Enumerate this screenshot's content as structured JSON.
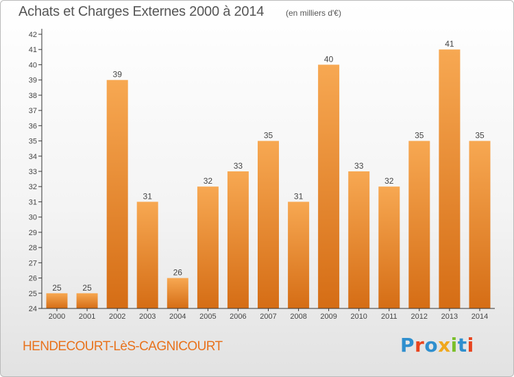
{
  "header": {
    "title": "Achats et Charges Externes 2000 à 2014",
    "unit": "(en milliers d'€)"
  },
  "footer": {
    "commune": "HENDECOURT-LèS-CAGNICOURT",
    "logo_text": "Proxiti",
    "logo_colors": [
      "#2f8fce",
      "#e8441e",
      "#2f8fce",
      "#f0a81e",
      "#7bbf2a",
      "#2f8fce",
      "#e8441e"
    ]
  },
  "colors": {
    "bar_top": "#f7a852",
    "bar_bottom": "#d56d15",
    "axis": "#333333",
    "text": "#444444"
  },
  "chart_data": {
    "type": "bar",
    "title": "Achats et Charges Externes 2000 à 2014",
    "xlabel": "",
    "ylabel": "",
    "categories": [
      "2000",
      "2001",
      "2002",
      "2003",
      "2004",
      "2005",
      "2006",
      "2007",
      "2008",
      "2009",
      "2010",
      "2011",
      "2012",
      "2013",
      "2014"
    ],
    "values": [
      25,
      25,
      39,
      31,
      26,
      32,
      33,
      35,
      31,
      40,
      33,
      32,
      35,
      41,
      35
    ],
    "ylim": [
      24,
      42
    ],
    "yticks": [
      24,
      25,
      26,
      27,
      28,
      29,
      30,
      31,
      32,
      33,
      34,
      35,
      36,
      37,
      38,
      39,
      40,
      41,
      42
    ],
    "grid": false,
    "legend": "none"
  }
}
